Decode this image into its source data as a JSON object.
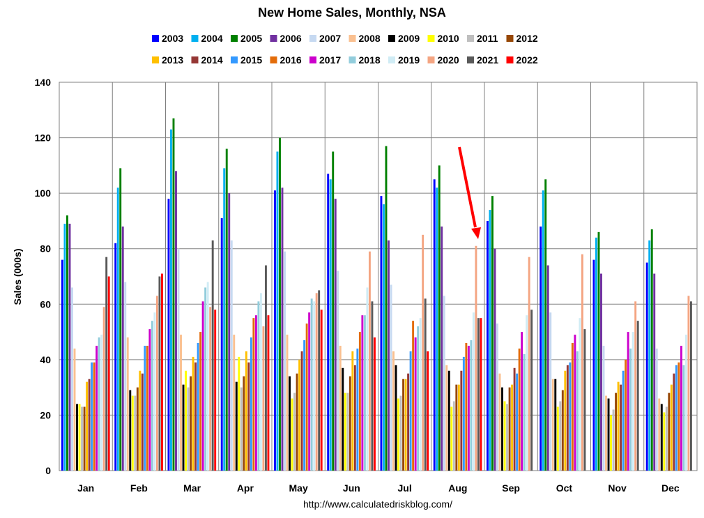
{
  "chart_data": {
    "type": "bar",
    "title": "New Home Sales, Monthly, NSA",
    "ylabel": "Sales (000s)",
    "xlabel": "",
    "ylim": [
      0,
      140
    ],
    "yticks": [
      0,
      20,
      40,
      60,
      80,
      100,
      120,
      140
    ],
    "grid": true,
    "legend_position": "top",
    "source": "http://www.calculatedriskblog.com/",
    "annotation": "red arrow pointing to August 2020",
    "categories": [
      "Jan",
      "Feb",
      "Mar",
      "Apr",
      "May",
      "Jun",
      "Jul",
      "Aug",
      "Sep",
      "Oct",
      "Nov",
      "Dec"
    ],
    "series": [
      {
        "name": "2003",
        "color": "#0000ff",
        "values": [
          76,
          82,
          98,
          91,
          101,
          107,
          99,
          105,
          90,
          88,
          76,
          75
        ]
      },
      {
        "name": "2004",
        "color": "#00b0f0",
        "values": [
          89,
          102,
          123,
          109,
          115,
          105,
          96,
          102,
          94,
          101,
          84,
          83
        ]
      },
      {
        "name": "2005",
        "color": "#008000",
        "values": [
          92,
          109,
          127,
          116,
          120,
          115,
          117,
          110,
          99,
          105,
          86,
          87
        ]
      },
      {
        "name": "2006",
        "color": "#7030a0",
        "values": [
          89,
          88,
          108,
          100,
          102,
          98,
          83,
          88,
          80,
          74,
          71,
          71
        ]
      },
      {
        "name": "2007",
        "color": "#c6d9f1",
        "values": [
          66,
          68,
          80,
          83,
          79,
          72,
          67,
          63,
          53,
          57,
          45,
          44
        ]
      },
      {
        "name": "2008",
        "color": "#fac090",
        "values": [
          44,
          48,
          49,
          49,
          49,
          45,
          43,
          38,
          35,
          33,
          27,
          26
        ]
      },
      {
        "name": "2009",
        "color": "#000000",
        "values": [
          24,
          29,
          31,
          32,
          34,
          37,
          38,
          36,
          30,
          33,
          26,
          24
        ]
      },
      {
        "name": "2010",
        "color": "#ffff00",
        "values": [
          24,
          27,
          36,
          41,
          26,
          28,
          26,
          23,
          25,
          23,
          20,
          21
        ]
      },
      {
        "name": "2011",
        "color": "#bfbfbf",
        "values": [
          23,
          27,
          30,
          30,
          28,
          28,
          27,
          25,
          24,
          25,
          22,
          23
        ]
      },
      {
        "name": "2012",
        "color": "#974706",
        "values": [
          23,
          30,
          34,
          34,
          35,
          34,
          33,
          31,
          30,
          29,
          28,
          28
        ]
      },
      {
        "name": "2013",
        "color": "#ffc000",
        "values": [
          32,
          36,
          41,
          43,
          40,
          43,
          33,
          31,
          31,
          36,
          32,
          31
        ]
      },
      {
        "name": "2014",
        "color": "#953735",
        "values": [
          33,
          35,
          39,
          39,
          43,
          38,
          35,
          36,
          37,
          38,
          31,
          35
        ]
      },
      {
        "name": "2015",
        "color": "#3399ff",
        "values": [
          39,
          45,
          46,
          48,
          47,
          44,
          43,
          41,
          35,
          39,
          36,
          38
        ]
      },
      {
        "name": "2016",
        "color": "#e36c0a",
        "values": [
          39,
          45,
          50,
          55,
          53,
          50,
          54,
          46,
          44,
          46,
          40,
          39
        ]
      },
      {
        "name": "2017",
        "color": "#cc00cc",
        "values": [
          45,
          51,
          61,
          56,
          57,
          56,
          48,
          45,
          50,
          49,
          50,
          45
        ]
      },
      {
        "name": "2018",
        "color": "#92cddc",
        "values": [
          48,
          54,
          66,
          61,
          62,
          56,
          52,
          47,
          42,
          43,
          44,
          38
        ]
      },
      {
        "name": "2019",
        "color": "#d0ecf5",
        "values": [
          49,
          57,
          68,
          64,
          61,
          66,
          55,
          57,
          56,
          55,
          50,
          49
        ]
      },
      {
        "name": "2020",
        "color": "#f4a582",
        "values": [
          59,
          63,
          59,
          52,
          64,
          79,
          85,
          81,
          77,
          78,
          61,
          63
        ]
      },
      {
        "name": "2021",
        "color": "#595959",
        "values": [
          77,
          70,
          83,
          74,
          65,
          61,
          62,
          55,
          58,
          51,
          54,
          61
        ]
      },
      {
        "name": "2022",
        "color": "#ff0000",
        "values": [
          70,
          71,
          58,
          56,
          58,
          48,
          43,
          55,
          null,
          null,
          null,
          null
        ]
      }
    ]
  }
}
